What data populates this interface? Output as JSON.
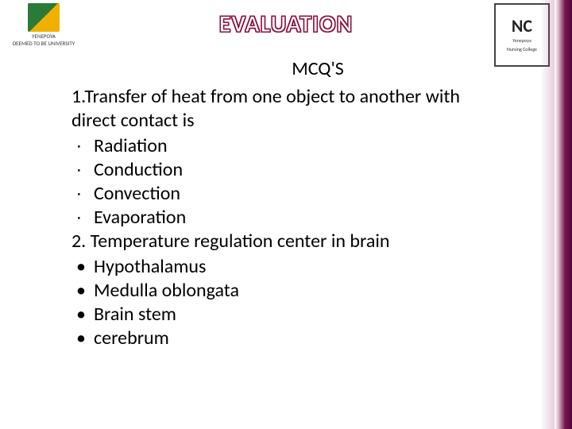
{
  "header": {
    "title": "EVALUATION",
    "title_color_outline": "#8a0f3a",
    "title_color_fill": "#ffffff",
    "logo_left": {
      "name": "YENEPOYA",
      "subtitle": "DEEMED TO BE UNIVERSITY"
    },
    "logo_right": {
      "mark": "NC",
      "line1": "Yenepoya",
      "line2": "Nursing College"
    }
  },
  "content": {
    "subtitle": "MCQ'S",
    "q1": {
      "text": "1.Transfer of heat from one object to another with direct contact is",
      "bullet": "∙",
      "options": [
        "Radiation",
        "Conduction",
        "Convection",
        "Evaporation"
      ]
    },
    "q2": {
      "text": "2. Temperature regulation center in brain",
      "bullet": "•",
      "options": [
        "Hypothalamus",
        "Medulla oblongata",
        "Brain stem",
        "cerebrum"
      ]
    }
  },
  "style": {
    "body_font_size_pt": 24,
    "title_font_size_pt": 30,
    "accent_gradient_from": "#7a1352",
    "accent_gradient_to": "#4a0b32",
    "background": "#ffffff",
    "text_color": "#000000"
  }
}
